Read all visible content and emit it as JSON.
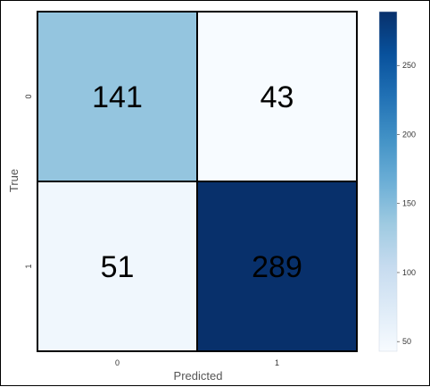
{
  "chart_data": {
    "type": "heatmap",
    "title": "",
    "xlabel": "Predicted",
    "ylabel": "True",
    "x_categories": [
      "0",
      "1"
    ],
    "y_categories": [
      "0",
      "1"
    ],
    "matrix": [
      [
        141,
        43
      ],
      [
        51,
        289
      ]
    ],
    "colormap": "Blues",
    "colorbar": {
      "min": 43,
      "max": 289,
      "ticks": [
        50,
        100,
        150,
        200,
        250
      ]
    }
  }
}
